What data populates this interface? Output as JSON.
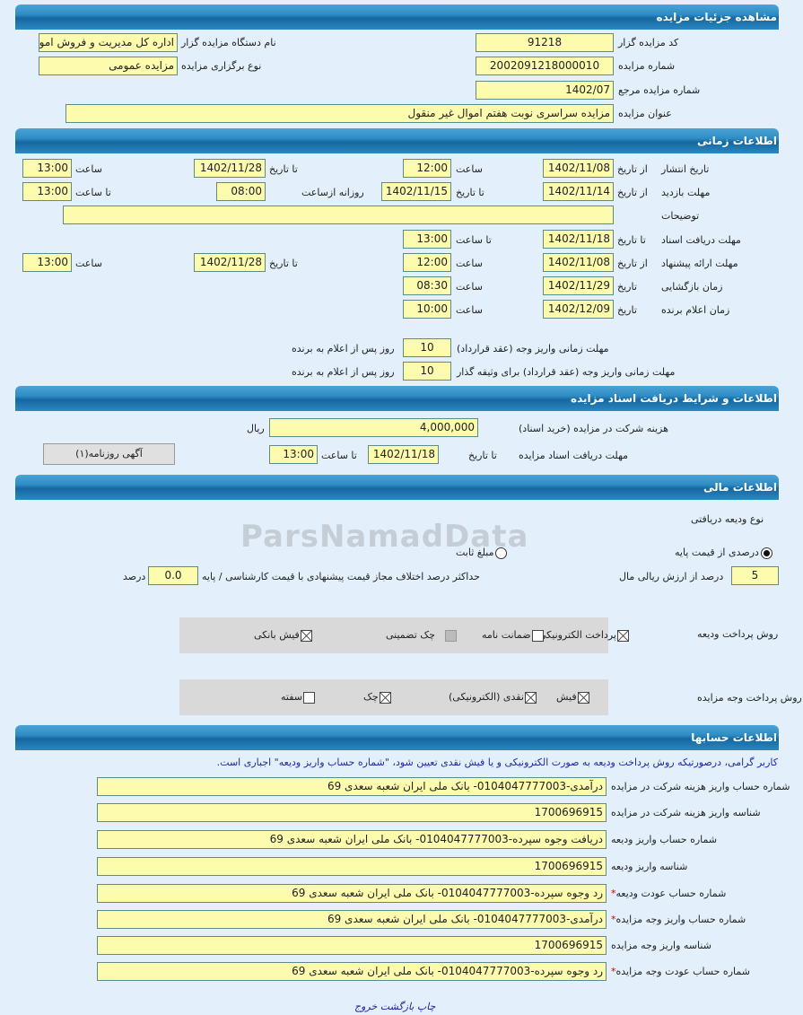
{
  "s1": {
    "title": "مشاهده جزئیات مزایده",
    "code_label": "کد مزایده گزار",
    "code": "91218",
    "org_label": "نام دستگاه مزایده گزار",
    "org": "اداره کل مدیریت و فروش اموال",
    "num_label": "شماره مزایده",
    "num": "2002091218000010",
    "type_label": "نوع برگزاری مزایده",
    "type": "مزایده عمومی",
    "ref_label": "شماره مزایده مرجع",
    "ref": "1402/07",
    "subj_label": "عنوان مزایده",
    "subj": "مزایده سراسری نوبت هفتم اموال غیر منقول"
  },
  "s2": {
    "title": "اطلاعات زمانی",
    "pub_label": "تاریخ انتشار",
    "from_date": "از تاریخ",
    "to_date": "تا تاریخ",
    "date": "تاریخ",
    "hour": "ساعت",
    "to_hour": "تا ساعت",
    "daily_from": "روزانه ازساعت",
    "pub_from": "1402/11/08",
    "pub_from_time": "12:00",
    "pub_to": "1402/11/28",
    "pub_to_time": "13:00",
    "visit_label": "مهلت بازدید",
    "visit_from": "1402/11/14",
    "visit_to": "1402/11/15",
    "visit_daily": "08:00",
    "visit_to_time": "13:00",
    "desc_label": "توضیحات",
    "desc": "",
    "docs_label": "مهلت دریافت اسناد",
    "docs_to": "1402/11/18",
    "docs_time": "13:00",
    "offer_label": "مهلت ارائه پیشنهاد",
    "offer_from": "1402/11/08",
    "offer_from_time": "12:00",
    "offer_to": "1402/11/28",
    "offer_to_time": "13:00",
    "open_label": "زمان بازگشایی",
    "open_date": "1402/11/29",
    "open_time": "08:30",
    "winner_label": "زمان اعلام برنده",
    "winner_date": "1402/12/09",
    "winner_time": "10:00",
    "pay_label": "مهلت زمانی واریز وجه (عقد قرارداد)",
    "pay_days": "10",
    "days_after": "روز پس از اعلام به برنده",
    "pay2_label": "مهلت زمانی واریز وجه (عقد قرارداد) برای وثیقه گذار",
    "pay2_days": "10"
  },
  "s3": {
    "title": "اطلاعات و شرایط دریافت اسناد مزایده",
    "fee_label": "هزینه شرکت در مزایده (خرید اسناد)",
    "fee": "4,000,000",
    "currency": "ریال",
    "docs_label": "مهلت دریافت اسناد مزایده",
    "to_date": "تا تاریخ",
    "docs_date": "1402/11/18",
    "to_hour": "تا ساعت",
    "docs_time": "13:00",
    "ad_button": "آگهی روزنامه(۱)"
  },
  "s4": {
    "title": "اطلاعات مالی",
    "dep_type_label": "نوع ودیعه دریافتی",
    "radio_percent": "درصدی از قیمت پایه",
    "radio_fixed": "مبلغ ثابت",
    "selected": "percent",
    "percent": "5",
    "percent_label": "درصد از ارزش ریالی مال",
    "maxdiff_label": "حداکثر درصد اختلاف مجاز قیمت پیشنهادی با قیمت کارشناسی / پایه",
    "maxdiff": "0.0",
    "percent_unit": "درصد",
    "dep_pay_label": "روش پرداخت ودیعه",
    "dep_methods": [
      {
        "label": "پرداخت الکترونیکی",
        "checked": true
      },
      {
        "label": "ضمانت نامه",
        "checked": false
      },
      {
        "label": "چک تضمینی",
        "checked": false,
        "disabled": true
      },
      {
        "label": "فیش بانکی",
        "checked": true
      }
    ],
    "auc_pay_label": "روش پرداخت وجه مزایده",
    "auc_methods": [
      {
        "label": "فیش",
        "checked": true
      },
      {
        "label": "نقدی (الکترونیکی)",
        "checked": true
      },
      {
        "label": "چک",
        "checked": true
      },
      {
        "label": "سفته",
        "checked": false
      }
    ]
  },
  "s5": {
    "title": "اطلاعات حسابها",
    "notice": "کاربر گرامی، درصورتیکه روش پرداخت ودیعه به صورت الکترونیکی و یا فیش نقدی تعیین شود، \"شماره حساب واریز ودیعه\" اجباری است.",
    "rows": [
      {
        "label": "شماره حساب واریز هزینه شرکت در مزایده",
        "value": "درآمدی-0104047777003- بانک ملی ایران شعبه سعدی 69",
        "required": false
      },
      {
        "label": "شناسه واریز هزینه شرکت در مزایده",
        "value": "1700696915",
        "required": false
      },
      {
        "label": "شماره حساب واریز ودیعه",
        "value": "دریافت وجوه سپرده-0104047777003- بانک ملی ایران شعبه سعدی 69",
        "required": false
      },
      {
        "label": "شناسه واریز ودیعه",
        "value": "1700696915",
        "required": false
      },
      {
        "label": "شماره حساب عودت ودیعه",
        "value": "رد وجوه سپرده-0104047777003- بانک ملی ایران شعبه سعدی 69",
        "required": true
      },
      {
        "label": "شماره حساب واریز وجه مزایده",
        "value": "درآمدی-0104047777003- بانک ملی ایران شعبه سعدی 69",
        "required": true
      },
      {
        "label": "شناسه واریز وجه مزایده",
        "value": "1700696915",
        "required": false
      },
      {
        "label": "شماره حساب عودت وجه مزایده",
        "value": "رد وجوه سپرده-0104047777003- بانک ملی ایران شعبه سعدی 69",
        "required": true
      }
    ]
  },
  "footer": {
    "print": "چاپ",
    "back": "بازگشت",
    "exit": "خروج"
  },
  "watermark": "ParsNamadData"
}
